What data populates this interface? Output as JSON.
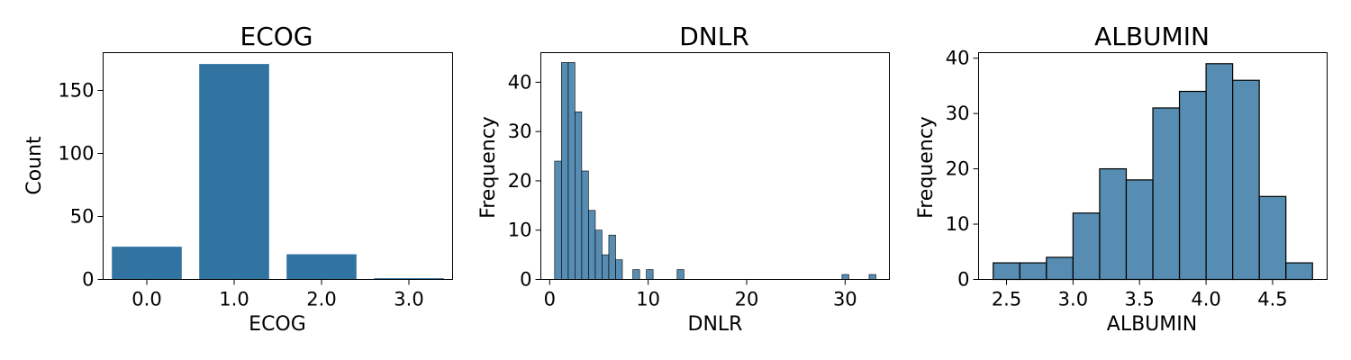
{
  "chart_data": [
    {
      "type": "bar",
      "title": "ECOG",
      "xlabel": "ECOG",
      "ylabel": "Count",
      "categories": [
        "0.0",
        "1.0",
        "2.0",
        "3.0"
      ],
      "values": [
        26,
        171,
        20,
        1
      ],
      "ylim": [
        0,
        180
      ],
      "yticks": [
        0,
        50,
        100,
        150
      ],
      "color": "#3274a1",
      "grid": false
    },
    {
      "type": "bar",
      "title": "DNLR",
      "xlabel": "DNLR",
      "ylabel": "Frequency",
      "bins": [
        {
          "x0": 0.5,
          "x1": 1.19,
          "value": 24
        },
        {
          "x0": 1.19,
          "x1": 1.88,
          "value": 44
        },
        {
          "x0": 1.88,
          "x1": 2.56,
          "value": 44
        },
        {
          "x0": 2.56,
          "x1": 3.25,
          "value": 34
        },
        {
          "x0": 3.25,
          "x1": 3.94,
          "value": 22
        },
        {
          "x0": 3.94,
          "x1": 4.63,
          "value": 14
        },
        {
          "x0": 4.63,
          "x1": 5.31,
          "value": 10
        },
        {
          "x0": 5.31,
          "x1": 6.0,
          "value": 5
        },
        {
          "x0": 6.0,
          "x1": 6.69,
          "value": 9
        },
        {
          "x0": 6.69,
          "x1": 7.38,
          "value": 4
        },
        {
          "x0": 8.44,
          "x1": 9.13,
          "value": 2
        },
        {
          "x0": 9.81,
          "x1": 10.5,
          "value": 2
        },
        {
          "x0": 12.94,
          "x1": 13.63,
          "value": 2
        },
        {
          "x0": 29.69,
          "x1": 30.38,
          "value": 1
        },
        {
          "x0": 32.44,
          "x1": 33.13,
          "value": 1
        }
      ],
      "xlim": [
        -0.9,
        34.5
      ],
      "xticks": [
        0,
        10,
        20,
        30
      ],
      "ylim": [
        0,
        46
      ],
      "yticks": [
        0,
        10,
        20,
        30,
        40
      ],
      "color": "#3274a1",
      "grid": false
    },
    {
      "type": "bar",
      "title": "ALBUMIN",
      "xlabel": "ALBUMIN",
      "ylabel": "Frequency",
      "bins": [
        {
          "x0": 2.4,
          "x1": 2.6,
          "value": 3
        },
        {
          "x0": 2.6,
          "x1": 2.8,
          "value": 3
        },
        {
          "x0": 2.8,
          "x1": 3.0,
          "value": 4
        },
        {
          "x0": 3.0,
          "x1": 3.2,
          "value": 12
        },
        {
          "x0": 3.2,
          "x1": 3.4,
          "value": 20
        },
        {
          "x0": 3.4,
          "x1": 3.6,
          "value": 18
        },
        {
          "x0": 3.6,
          "x1": 3.8,
          "value": 31
        },
        {
          "x0": 3.8,
          "x1": 4.0,
          "value": 34
        },
        {
          "x0": 4.0,
          "x1": 4.2,
          "value": 39
        },
        {
          "x0": 4.2,
          "x1": 4.4,
          "value": 36
        },
        {
          "x0": 4.4,
          "x1": 4.6,
          "value": 15
        },
        {
          "x0": 4.6,
          "x1": 4.8,
          "value": 3
        }
      ],
      "xlim": [
        2.29,
        4.91
      ],
      "xticks": [
        "2.5",
        "3.0",
        "3.5",
        "4.0",
        "4.5"
      ],
      "ylim": [
        0,
        41
      ],
      "yticks": [
        0,
        10,
        20,
        30,
        40
      ],
      "color": "#3274a1",
      "grid": false
    }
  ]
}
